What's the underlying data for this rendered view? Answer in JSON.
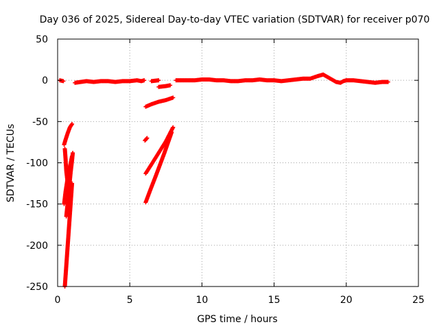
{
  "chart_data": {
    "type": "scatter",
    "title": "Day 036 of 2025, Sidereal Day-to-day VTEC variation (SDTVAR) for receiver p070",
    "xlabel": "GPS time / hours",
    "ylabel": "SDTVAR / TECUs",
    "xlim": [
      0,
      25
    ],
    "ylim": [
      -250,
      50
    ],
    "xticks": [
      0,
      5,
      10,
      15,
      20,
      25
    ],
    "yticks": [
      -250,
      -200,
      -150,
      -100,
      -50,
      0,
      50
    ],
    "grid": true,
    "marker": "plus",
    "color": "#ff0000",
    "series": [
      {
        "name": "near-zero arc",
        "segments": [
          [
            [
              0.15,
              0
            ],
            [
              0.4,
              -1
            ]
          ],
          [
            [
              1.2,
              -3
            ],
            [
              1.6,
              -2
            ],
            [
              2.0,
              -1
            ],
            [
              2.5,
              -2
            ],
            [
              3.0,
              -1
            ],
            [
              3.5,
              -1
            ],
            [
              4.0,
              -2
            ],
            [
              4.5,
              -1
            ],
            [
              5.0,
              -1
            ],
            [
              5.5,
              0
            ],
            [
              5.8,
              -1
            ],
            [
              6.0,
              0
            ]
          ],
          [
            [
              6.5,
              -1
            ],
            [
              7.0,
              0
            ]
          ],
          [
            [
              7.0,
              -8
            ],
            [
              7.5,
              -7
            ],
            [
              7.8,
              -6
            ]
          ],
          [
            [
              8.2,
              0
            ],
            [
              8.5,
              0
            ],
            [
              9.0,
              0
            ],
            [
              9.5,
              0
            ],
            [
              10.0,
              1
            ],
            [
              10.5,
              1
            ],
            [
              11.0,
              0
            ],
            [
              11.5,
              0
            ],
            [
              12.0,
              -1
            ],
            [
              12.5,
              -1
            ],
            [
              13.0,
              0
            ],
            [
              13.5,
              0
            ],
            [
              14.0,
              1
            ],
            [
              14.5,
              0
            ],
            [
              15.0,
              0
            ],
            [
              15.5,
              -1
            ],
            [
              16.0,
              0
            ],
            [
              16.5,
              1
            ],
            [
              17.0,
              2
            ],
            [
              17.5,
              2
            ],
            [
              18.0,
              5
            ],
            [
              18.4,
              7
            ],
            [
              18.7,
              4
            ],
            [
              19.0,
              1
            ],
            [
              19.3,
              -2
            ],
            [
              19.6,
              -3
            ],
            [
              19.8,
              -1
            ],
            [
              20.0,
              0
            ],
            [
              20.5,
              0
            ],
            [
              21.0,
              -1
            ],
            [
              21.5,
              -2
            ],
            [
              22.0,
              -3
            ],
            [
              22.5,
              -2
            ],
            [
              22.9,
              -2
            ]
          ]
        ]
      },
      {
        "name": "arc 6-8h upper",
        "segments": [
          [
            [
              6.1,
              -32
            ],
            [
              6.5,
              -29
            ],
            [
              7.0,
              -26
            ],
            [
              7.5,
              -24
            ],
            [
              8.0,
              -21
            ]
          ]
        ]
      },
      {
        "name": "arc 6-8h steep",
        "segments": [
          [
            [
              6.05,
              -73
            ],
            [
              6.2,
              -70
            ]
          ],
          [
            [
              6.1,
              -113
            ],
            [
              6.5,
              -102
            ],
            [
              7.0,
              -88
            ],
            [
              7.5,
              -74
            ],
            [
              8.0,
              -57
            ]
          ],
          [
            [
              6.1,
              -148
            ],
            [
              6.4,
              -134
            ],
            [
              6.8,
              -116
            ],
            [
              7.1,
              -102
            ],
            [
              7.4,
              -88
            ],
            [
              7.7,
              -73
            ],
            [
              7.9,
              -63
            ]
          ]
        ]
      },
      {
        "name": "early arcs 0-1h",
        "segments": [
          [
            [
              0.45,
              -78
            ],
            [
              0.55,
              -72
            ],
            [
              0.7,
              -64
            ],
            [
              0.85,
              -57
            ],
            [
              1.0,
              -53
            ]
          ],
          [
            [
              0.5,
              -83
            ],
            [
              0.55,
              -95
            ],
            [
              0.6,
              -110
            ],
            [
              0.7,
              -125
            ],
            [
              0.8,
              -140
            ],
            [
              0.9,
              -150
            ]
          ],
          [
            [
              0.45,
              -150
            ],
            [
              0.55,
              -135
            ],
            [
              0.7,
              -118
            ],
            [
              0.85,
              -105
            ],
            [
              1.0,
              -92
            ]
          ],
          [
            [
              0.5,
              -250
            ],
            [
              0.6,
              -225
            ],
            [
              0.7,
              -200
            ],
            [
              0.8,
              -175
            ],
            [
              0.9,
              -150
            ],
            [
              1.0,
              -125
            ]
          ],
          [
            [
              0.6,
              -165
            ],
            [
              0.7,
              -148
            ],
            [
              0.8,
              -130
            ],
            [
              0.9,
              -112
            ],
            [
              1.0,
              -97
            ],
            [
              1.05,
              -88
            ]
          ]
        ]
      }
    ]
  }
}
